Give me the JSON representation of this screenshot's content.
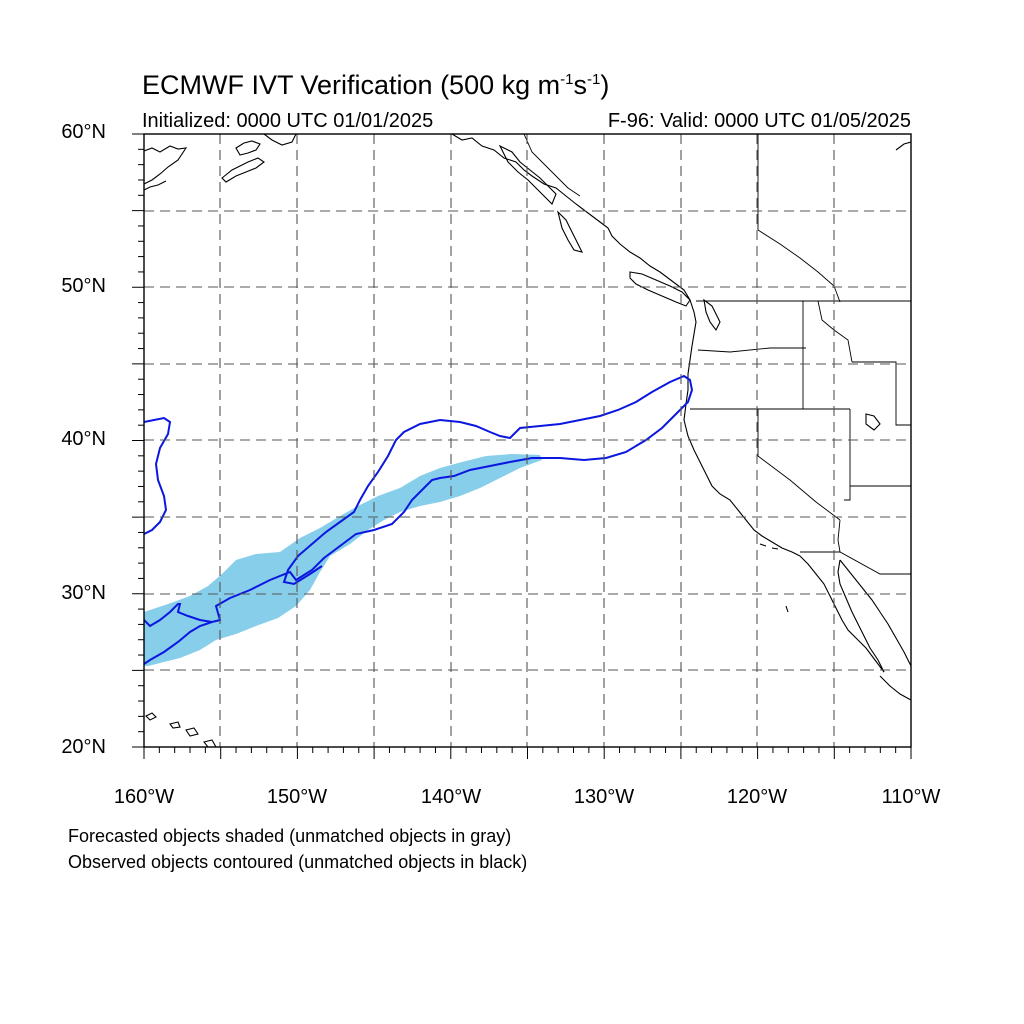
{
  "title": {
    "main": "ECMWF IVT Verification (500 kg m",
    "exp1": "-1",
    "mid": "s",
    "exp2": "-1",
    "end": ")"
  },
  "initialized": "Initialized: 0000 UTC 01/01/2025",
  "valid": "F-96: Valid: 0000 UTC 01/05/2025",
  "axes": {
    "lat_labels": [
      "60°N",
      "50°N",
      "40°N",
      "30°N",
      "20°N"
    ],
    "lon_labels": [
      "160°W",
      "150°W",
      "140°W",
      "130°W",
      "120°W",
      "110°W"
    ]
  },
  "notes": [
    "Forecasted objects shaded (unmatched objects in gray)",
    "Observed objects contoured (unmatched objects in black)"
  ],
  "colors": {
    "forecast_fill": "#87ceeb",
    "observed_contour": "#0b17e0",
    "coastline": "#000000",
    "grid": "#555555"
  }
}
